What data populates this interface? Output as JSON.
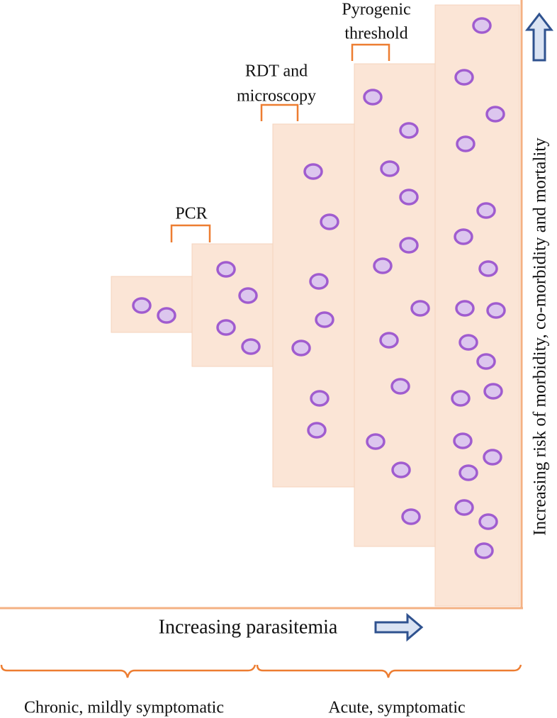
{
  "thresholds": [
    {
      "lines": [
        "PCR"
      ]
    },
    {
      "lines": [
        "RDT and",
        "microscopy"
      ]
    },
    {
      "lines": [
        "Pyrogenic",
        "threshold"
      ]
    }
  ],
  "x_axis": {
    "label": "Increasing parasitemia"
  },
  "y_axis": {
    "label": "Increasing risk of morbidity, co-morbidity and mortality"
  },
  "groups": [
    {
      "label": "Chronic, mildly symptomatic"
    },
    {
      "label": "Acute, symptomatic"
    }
  ]
}
